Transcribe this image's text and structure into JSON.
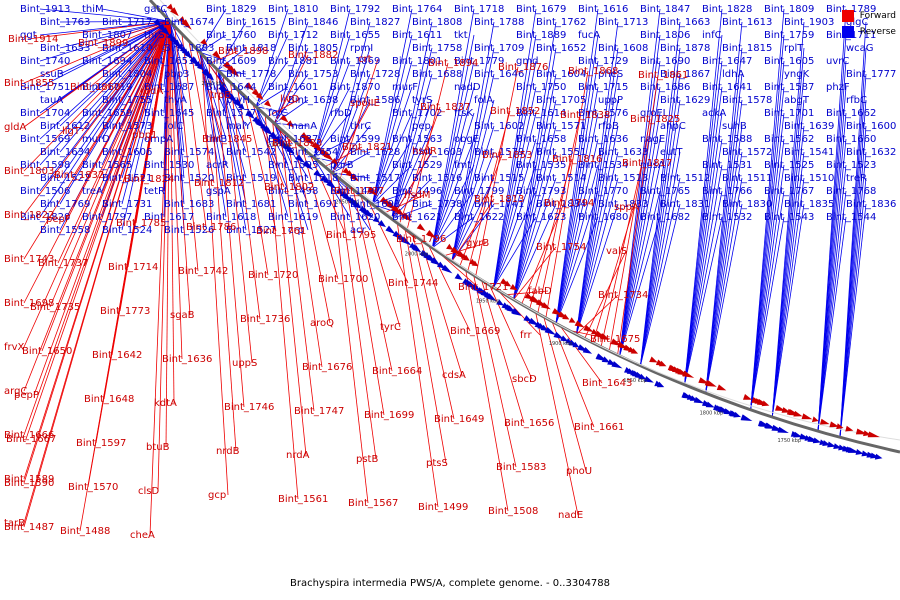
{
  "caption": "Brachyspira intermedia PWS/A, complete genome. - 0..3304788",
  "legend": [
    {
      "label": "Forward",
      "color": "#ee0000"
    },
    {
      "label": "Reverse",
      "color": "#0000ee"
    }
  ],
  "colors": {
    "forward": "#cc0000",
    "reverse": "#0000cc",
    "backbone": "#666666",
    "line_forward": "#ee0000",
    "line_reverse": "#0000ee"
  },
  "scale_labels": [
    "2150 kbp",
    "2100 kbp",
    "2050 kbp",
    "2000 kbp",
    "1950 kbp",
    "1900 kbp",
    "1850 kbp",
    "1800 kbp",
    "1750 kbp"
  ],
  "reverse_labels": [
    "Bint_1913",
    "thiM",
    "gatC",
    "Bint_1829",
    "Bint_1810",
    "Bint_1792",
    "Bint_1764",
    "Bint_1718",
    "Bint_1679",
    "Bint_1616",
    "Bint_1847",
    "Bint_1828",
    "Bint_1809",
    "Bint_1789",
    "Bint_1763",
    "Bint_1717",
    "Bint_1674",
    "Bint_1615",
    "Bint_1846",
    "Bint_1827",
    "Bint_1808",
    "Bint_1788",
    "Bint_1762",
    "Bint_1713",
    "Bint_1663",
    "Bint_1613",
    "Bint_1903",
    "glgC",
    "ggt",
    "Bint_1807",
    "thrS",
    "Bint_1760",
    "Bint_1712",
    "Bint_1655",
    "Bint_1611",
    "tkt",
    "Bint_1889",
    "fucA",
    "Bint_1806",
    "infC",
    "Bint_1759",
    "Bint_1711",
    "Bint_1653",
    "Bint_1610",
    "Bint_1883",
    "Bint_1818",
    "Bint_1805",
    "rpmI",
    "Bint_1758",
    "Bint_1709",
    "Bint_1652",
    "Bint_1608",
    "Bint_1878",
    "Bint_1815",
    "rplT",
    "wcaG",
    "Bint_1740",
    "Bint_1694",
    "Bint_1651",
    "Bint_1609",
    "Bint_1881",
    "Bint_1869",
    "Bint_1801",
    "Bint_1779",
    "gmd",
    "Bint_1729",
    "Bint_1690",
    "Bint_1647",
    "Bint_1605",
    "uvrC",
    "ssuB",
    "Bint_1804",
    "pbp3",
    "Bint_1778",
    "Bint_1753",
    "Bint_1728",
    "Bint_1688",
    "Bint_1646",
    "Bint_1604",
    "pheS",
    "Bint_1867",
    "ldhA",
    "yngK",
    "Bint_1777",
    "Bint_1751",
    "Bint_1719",
    "Bint_1687",
    "Bint_1644",
    "Bint_1601",
    "Bint_1870",
    "murF",
    "nadD",
    "Bint_1750",
    "Bint_1715",
    "Bint_1686",
    "Bint_1641",
    "Bint_1587",
    "phzF",
    "tauA",
    "Bint_1755",
    "thyA",
    "pryH",
    "Bint_1638",
    "Bint_1586",
    "tyrS",
    "folA",
    "Bint_1705",
    "uppP",
    "Bint_1629",
    "Bint_1578",
    "abgT",
    "rfbC",
    "Bint_1704",
    "Bint_1659",
    "Bint_1645",
    "Bint_1577",
    "folC",
    "rfbD",
    "Bint_1702",
    "ftsK",
    "Bint_1614",
    "Bint_1576",
    "groEL",
    "ackA",
    "Bint_1701",
    "Bint_1662",
    "Bint_1612",
    "Bint_1573",
    "folC",
    "malY",
    "manA",
    "thrC",
    "pep",
    "Bint_1602",
    "Bint_1571",
    "rfbB",
    "ahpC",
    "suhB",
    "Bint_1639",
    "Bint_1600",
    "Bint_1569",
    "murD",
    "ompA",
    "thrB",
    "Bint_1637",
    "Bint_1599",
    "Bint_1563",
    "obgE",
    "Bint_1658",
    "Bint_1636",
    "nagE",
    "Bint_1588",
    "Bint_1562",
    "Bint_1660",
    "Bint_1634",
    "Bint_1606",
    "Bint_1574",
    "Bint_1542",
    "Bint_1654",
    "Bint_1628",
    "Bint_1603",
    "Bint_1579",
    "Bint_1551",
    "Bint_1633",
    "eutT",
    "Bint_1572",
    "Bint_1541",
    "Bint_1632",
    "Bint_1598",
    "Bint_1565",
    "Bint_1530",
    "acrR",
    "Bint_1595",
    "purB",
    "Bint_1529",
    "fmt",
    "Bint_1535",
    "Bint_1534",
    "nusA",
    "Bint_1531",
    "Bint_1525",
    "Bint_1523",
    "Bint_1522",
    "Bint_1521",
    "Bint_1520",
    "Bint_1519",
    "Bint_1518",
    "Bint_1517",
    "Bint_1516",
    "Bint_1515",
    "Bint_1514",
    "Bint_1513",
    "Bint_1512",
    "Bint_1511",
    "Bint_1510",
    "treR",
    "Bint_1506",
    "treA",
    "tetR",
    "gspA",
    "Bint_1498",
    "Bint_1497",
    "Bint_1496",
    "Bint_1799",
    "Bint_1793",
    "Bint_1770",
    "Bint_1765",
    "Bint_1766",
    "Bint_1767",
    "Bint_1768",
    "Bint_1769",
    "Bint_1731",
    "Bint_1683",
    "Bint_1681",
    "Bint_1691",
    "Bint_1693",
    "Bint_1738",
    "Bint_1741",
    "Bint_1834",
    "Bint_1833",
    "Bint_1831",
    "Bint_1830",
    "Bint_1835",
    "Bint_1836",
    "Bint_1820",
    "Bint_1797",
    "Bint_1617",
    "Bint_1618",
    "Bint_1619",
    "Bint_1620",
    "Bint_1621",
    "Bint_1622",
    "Bint_1623",
    "Bint_1680",
    "Bint_1682",
    "Bint_1532",
    "Bint_1543",
    "Bint_1544",
    "Bint_1558",
    "Bint_1524",
    "Bint_1526",
    "Bint_1527",
    "crp",
    "acr"
  ],
  "forward_labels": [
    "Bint_1914",
    "Bint_1899",
    "ung",
    "Bint_1898",
    "Bint_1882",
    "crt",
    "Bint_1894",
    "Bint_1876",
    "Bint_1868",
    "Bint_1861",
    "Bint_1855",
    "Bint_1860",
    "rodA",
    "trpB",
    "livD",
    "spoIIE",
    "Bint_1837",
    "Bint_1852",
    "Bint_1838",
    "Bint_1825",
    "gldA",
    "ligT",
    "pbp1",
    "Bint_1845",
    "Bint_1823",
    "Bint_1821",
    "hsdR",
    "Bint_1853",
    "Bint_1816",
    "Bint_1817",
    "Bint_1803",
    "Bint_1832",
    "Bint_1824",
    "Bint_1812",
    "Bint_1802",
    "Bint_1787",
    "hsdM",
    "Bint_1813",
    "Bint_1794",
    "sppA",
    "Bint_1822",
    "pepF",
    "Bint_1785",
    "Bint_1786",
    "Bint_1761",
    "Bint_1795",
    "Bint_1796",
    "gyrB",
    "Bint_1754",
    "valS",
    "Bint_1743",
    "Bint_1737",
    "Bint_1714",
    "Bint_1742",
    "Bint_1720",
    "Bint_1700",
    "Bint_1744",
    "Bint_1721",
    "fabD",
    "Bint_1734",
    "Bint_1698",
    "Bint_1735",
    "Bint_1773",
    "sgaB",
    "Bint_1736",
    "aroQ",
    "tyrC",
    "Bint_1669",
    "frr",
    "Bint_1675",
    "frvX",
    "Bint_1650",
    "Bint_1642",
    "Bint_1636",
    "uppS",
    "Bint_1676",
    "Bint_1664",
    "cdsA",
    "sbcD",
    "Bint_1643",
    "argC",
    "pepP",
    "Bint_1648",
    "kdtA",
    "Bint_1746",
    "Bint_1747",
    "Bint_1699",
    "Bint_1649",
    "Bint_1656",
    "Bint_1661",
    "Bint_1666",
    "Bint_1667",
    "Bint_1597",
    "btuB",
    "nrdB",
    "nrdA",
    "pstB",
    "ptsS",
    "Bint_1583",
    "phoU",
    "Bint_1589",
    "Bint_1590",
    "Bint_1570",
    "clsD",
    "gcp",
    "Bint_1561",
    "Bint_1567",
    "Bint_1499",
    "Bint_1508",
    "nadE",
    "tarB",
    "Bint_1487",
    "Bint_1488",
    "cheA"
  ]
}
